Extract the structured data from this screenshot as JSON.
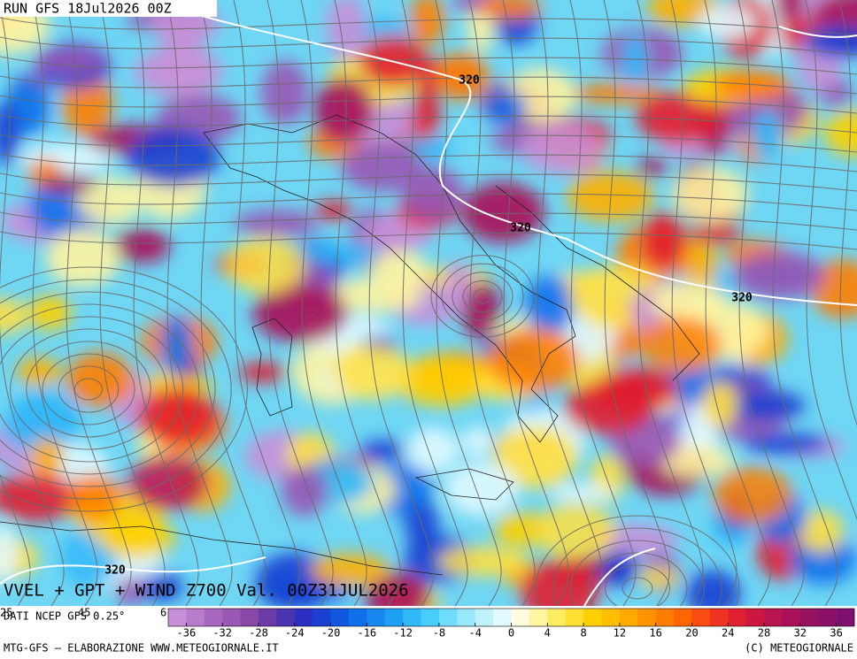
{
  "header": {
    "run": "RUN GFS 18Jul2026 00Z"
  },
  "map": {
    "contour_labels": [
      "320",
      "320",
      "320",
      "320"
    ],
    "caption": "VVEL + GPT + WIND Z700 Val. 00Z31JUL2026",
    "lon_labels": [
      "25",
      "45",
      "6"
    ]
  },
  "colorbar": {
    "lim": [
      -38,
      38
    ],
    "ticks": [
      -36,
      -32,
      -28,
      -24,
      -20,
      -16,
      -12,
      -8,
      -4,
      0,
      4,
      8,
      12,
      16,
      20,
      24,
      28,
      32,
      36
    ],
    "colors": [
      "#c890d8",
      "#b87ccc",
      "#a868c0",
      "#9858b4",
      "#8848a8",
      "#6a3ca8",
      "#4a34b0",
      "#2c30c0",
      "#1a40d0",
      "#1058e0",
      "#1070ea",
      "#1888f0",
      "#20a0f4",
      "#30b8f8",
      "#48ccfa",
      "#70dcfc",
      "#98e8fc",
      "#c0f2fc",
      "#e0faff",
      "#fffce0",
      "#fff4a0",
      "#ffec60",
      "#ffe030",
      "#ffd000",
      "#ffbe00",
      "#ffaa00",
      "#ff9400",
      "#ff7e00",
      "#ff6600",
      "#f84c10",
      "#ee3420",
      "#e02030",
      "#cc1840",
      "#b81450",
      "#a81058",
      "#981060",
      "#8c1068",
      "#801070"
    ]
  },
  "footer": {
    "source": "DATI NCEP GFS 0.25°",
    "credit": "MTG-GFS — ELABORAZIONE WWW.METEOGIORNALE.IT",
    "copyright": "(C) METEOGIORNALE"
  }
}
